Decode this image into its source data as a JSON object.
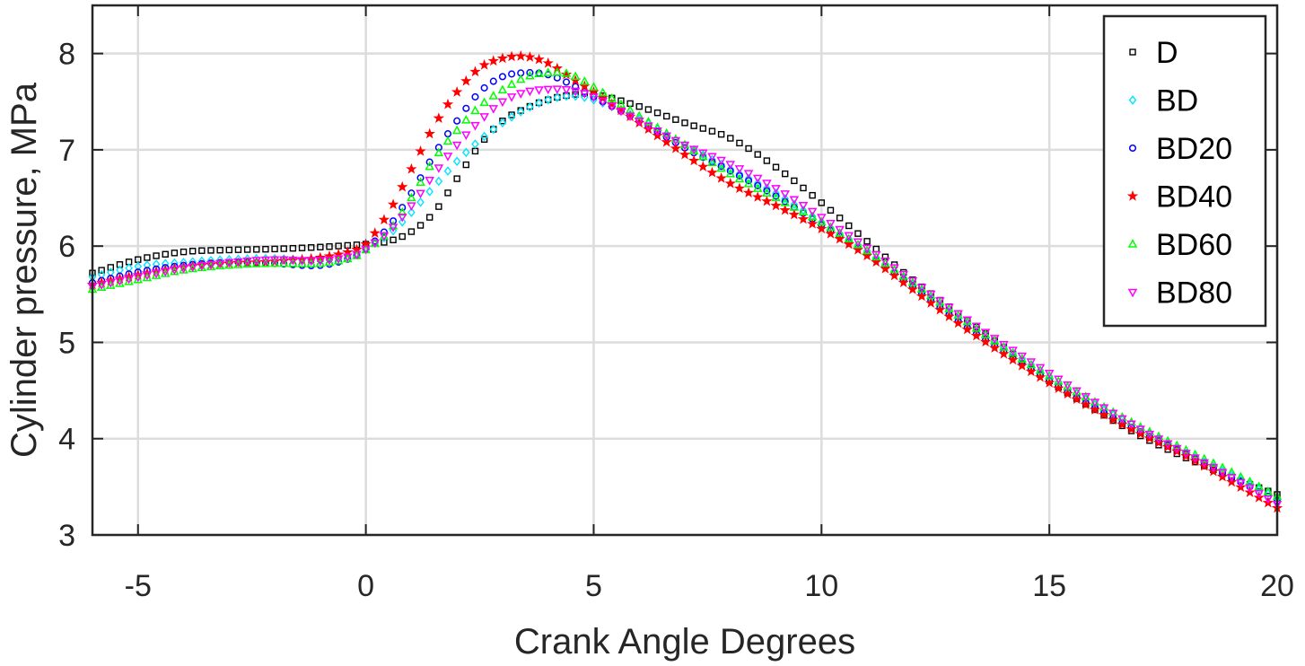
{
  "chart_data": {
    "type": "scatter",
    "title": "",
    "xlabel": "Crank Angle Degrees",
    "ylabel": "Cylinder pressure, MPa",
    "xlim": [
      -6,
      20
    ],
    "ylim": [
      3,
      8.5
    ],
    "xticks": [
      -5,
      0,
      5,
      10,
      15,
      20
    ],
    "yticks": [
      3,
      4,
      5,
      6,
      7,
      8
    ],
    "xtick_labels": [
      "-5",
      "0",
      "5",
      "10",
      "15",
      "20"
    ],
    "ytick_labels": [
      "3",
      "4",
      "5",
      "6",
      "7",
      "8"
    ],
    "grid": true,
    "legend_position": "top-right",
    "series": [
      {
        "name": "D",
        "marker": "square",
        "color": "#000000",
        "points": [
          [
            -6,
            5.72
          ],
          [
            -5,
            5.86
          ],
          [
            -4,
            5.94
          ],
          [
            -3,
            5.96
          ],
          [
            -2,
            5.97
          ],
          [
            -1,
            5.99
          ],
          [
            -0.3,
            6.01
          ],
          [
            0,
            6.02
          ],
          [
            0.5,
            6.05
          ],
          [
            1,
            6.15
          ],
          [
            1.5,
            6.35
          ],
          [
            2,
            6.7
          ],
          [
            2.5,
            7.05
          ],
          [
            3,
            7.3
          ],
          [
            3.5,
            7.43
          ],
          [
            4,
            7.52
          ],
          [
            4.5,
            7.57
          ],
          [
            5,
            7.58
          ],
          [
            6,
            7.45
          ],
          [
            7,
            7.28
          ],
          [
            8,
            7.12
          ],
          [
            9,
            6.82
          ],
          [
            10,
            6.45
          ],
          [
            11,
            6.05
          ],
          [
            12,
            5.65
          ],
          [
            13,
            5.3
          ],
          [
            14,
            4.95
          ],
          [
            15,
            4.6
          ],
          [
            16,
            4.3
          ],
          [
            17,
            4.03
          ],
          [
            18,
            3.8
          ],
          [
            19,
            3.6
          ],
          [
            20,
            3.42
          ]
        ]
      },
      {
        "name": "BD",
        "marker": "diamond",
        "color": "#00e5ff",
        "points": [
          [
            -6,
            5.68
          ],
          [
            -5,
            5.79
          ],
          [
            -4,
            5.83
          ],
          [
            -3,
            5.86
          ],
          [
            -2,
            5.87
          ],
          [
            -1,
            5.85
          ],
          [
            -0.3,
            5.9
          ],
          [
            0,
            5.98
          ],
          [
            0.5,
            6.12
          ],
          [
            1,
            6.35
          ],
          [
            1.5,
            6.62
          ],
          [
            2,
            6.88
          ],
          [
            2.5,
            7.1
          ],
          [
            3,
            7.28
          ],
          [
            3.5,
            7.42
          ],
          [
            4,
            7.52
          ],
          [
            4.5,
            7.56
          ],
          [
            5,
            7.52
          ],
          [
            6,
            7.32
          ],
          [
            7,
            7.05
          ],
          [
            8,
            6.8
          ],
          [
            9,
            6.55
          ],
          [
            10,
            6.25
          ],
          [
            11,
            5.95
          ],
          [
            12,
            5.6
          ],
          [
            13,
            5.25
          ],
          [
            14,
            4.95
          ],
          [
            15,
            4.65
          ],
          [
            16,
            4.35
          ],
          [
            17,
            4.1
          ],
          [
            18,
            3.85
          ],
          [
            19,
            3.62
          ],
          [
            20,
            3.38
          ]
        ]
      },
      {
        "name": "BD20",
        "marker": "circle",
        "color": "#0000ff",
        "points": [
          [
            -6,
            5.62
          ],
          [
            -5,
            5.73
          ],
          [
            -4,
            5.8
          ],
          [
            -3,
            5.83
          ],
          [
            -2,
            5.82
          ],
          [
            -1,
            5.8
          ],
          [
            -0.3,
            5.88
          ],
          [
            0,
            5.97
          ],
          [
            0.5,
            6.2
          ],
          [
            1,
            6.55
          ],
          [
            1.5,
            6.95
          ],
          [
            2,
            7.3
          ],
          [
            2.5,
            7.6
          ],
          [
            3,
            7.76
          ],
          [
            3.5,
            7.8
          ],
          [
            4,
            7.78
          ],
          [
            4.5,
            7.68
          ],
          [
            5,
            7.55
          ],
          [
            6,
            7.3
          ],
          [
            7,
            7.02
          ],
          [
            8,
            6.78
          ],
          [
            9,
            6.52
          ],
          [
            10,
            6.22
          ],
          [
            11,
            5.92
          ],
          [
            12,
            5.58
          ],
          [
            13,
            5.22
          ],
          [
            14,
            4.9
          ],
          [
            15,
            4.6
          ],
          [
            16,
            4.32
          ],
          [
            17,
            4.07
          ],
          [
            18,
            3.84
          ],
          [
            19,
            3.6
          ],
          [
            20,
            3.35
          ]
        ]
      },
      {
        "name": "BD40",
        "marker": "star",
        "color": "#ff0000",
        "points": [
          [
            -6,
            5.6
          ],
          [
            -5,
            5.7
          ],
          [
            -4,
            5.78
          ],
          [
            -3,
            5.82
          ],
          [
            -2,
            5.84
          ],
          [
            -1,
            5.88
          ],
          [
            -0.3,
            5.95
          ],
          [
            0,
            6.02
          ],
          [
            0.5,
            6.35
          ],
          [
            1,
            6.8
          ],
          [
            1.5,
            7.25
          ],
          [
            2,
            7.6
          ],
          [
            2.5,
            7.85
          ],
          [
            3,
            7.95
          ],
          [
            3.5,
            7.97
          ],
          [
            4,
            7.9
          ],
          [
            4.5,
            7.75
          ],
          [
            5,
            7.6
          ],
          [
            6,
            7.28
          ],
          [
            7,
            6.95
          ],
          [
            8,
            6.65
          ],
          [
            9,
            6.42
          ],
          [
            10,
            6.18
          ],
          [
            11,
            5.9
          ],
          [
            12,
            5.55
          ],
          [
            13,
            5.2
          ],
          [
            14,
            4.88
          ],
          [
            15,
            4.58
          ],
          [
            16,
            4.3
          ],
          [
            17,
            4.05
          ],
          [
            18,
            3.82
          ],
          [
            19,
            3.55
          ],
          [
            20,
            3.28
          ]
        ]
      },
      {
        "name": "BD60",
        "marker": "triangle-up",
        "color": "#00ff00",
        "points": [
          [
            -6,
            5.55
          ],
          [
            -5,
            5.65
          ],
          [
            -4,
            5.75
          ],
          [
            -3,
            5.8
          ],
          [
            -2,
            5.82
          ],
          [
            -1,
            5.82
          ],
          [
            -0.3,
            5.88
          ],
          [
            0,
            5.96
          ],
          [
            0.5,
            6.15
          ],
          [
            1,
            6.5
          ],
          [
            1.5,
            6.9
          ],
          [
            2,
            7.2
          ],
          [
            2.5,
            7.45
          ],
          [
            3,
            7.62
          ],
          [
            3.5,
            7.75
          ],
          [
            4,
            7.8
          ],
          [
            4.5,
            7.78
          ],
          [
            5,
            7.65
          ],
          [
            6,
            7.35
          ],
          [
            7,
            7.05
          ],
          [
            8,
            6.75
          ],
          [
            9,
            6.5
          ],
          [
            10,
            6.25
          ],
          [
            11,
            5.95
          ],
          [
            12,
            5.62
          ],
          [
            13,
            5.28
          ],
          [
            14,
            4.95
          ],
          [
            15,
            4.65
          ],
          [
            16,
            4.38
          ],
          [
            17,
            4.12
          ],
          [
            18,
            3.88
          ],
          [
            19,
            3.65
          ],
          [
            20,
            3.4
          ]
        ]
      },
      {
        "name": "BD80",
        "marker": "triangle-down",
        "color": "#ff00ff",
        "points": [
          [
            -6,
            5.58
          ],
          [
            -5,
            5.68
          ],
          [
            -4,
            5.77
          ],
          [
            -3,
            5.83
          ],
          [
            -2,
            5.86
          ],
          [
            -1,
            5.85
          ],
          [
            -0.3,
            5.9
          ],
          [
            0,
            5.97
          ],
          [
            0.5,
            6.15
          ],
          [
            1,
            6.42
          ],
          [
            1.5,
            6.75
          ],
          [
            2,
            7.05
          ],
          [
            2.5,
            7.3
          ],
          [
            3,
            7.5
          ],
          [
            3.5,
            7.6
          ],
          [
            4,
            7.63
          ],
          [
            4.5,
            7.62
          ],
          [
            5,
            7.55
          ],
          [
            6,
            7.3
          ],
          [
            7,
            7.05
          ],
          [
            8,
            6.85
          ],
          [
            9,
            6.6
          ],
          [
            10,
            6.3
          ],
          [
            11,
            5.98
          ],
          [
            12,
            5.64
          ],
          [
            13,
            5.3
          ],
          [
            14,
            4.98
          ],
          [
            15,
            4.68
          ],
          [
            16,
            4.38
          ],
          [
            17,
            4.1
          ],
          [
            18,
            3.85
          ],
          [
            19,
            3.6
          ],
          [
            20,
            3.32
          ]
        ]
      }
    ]
  }
}
